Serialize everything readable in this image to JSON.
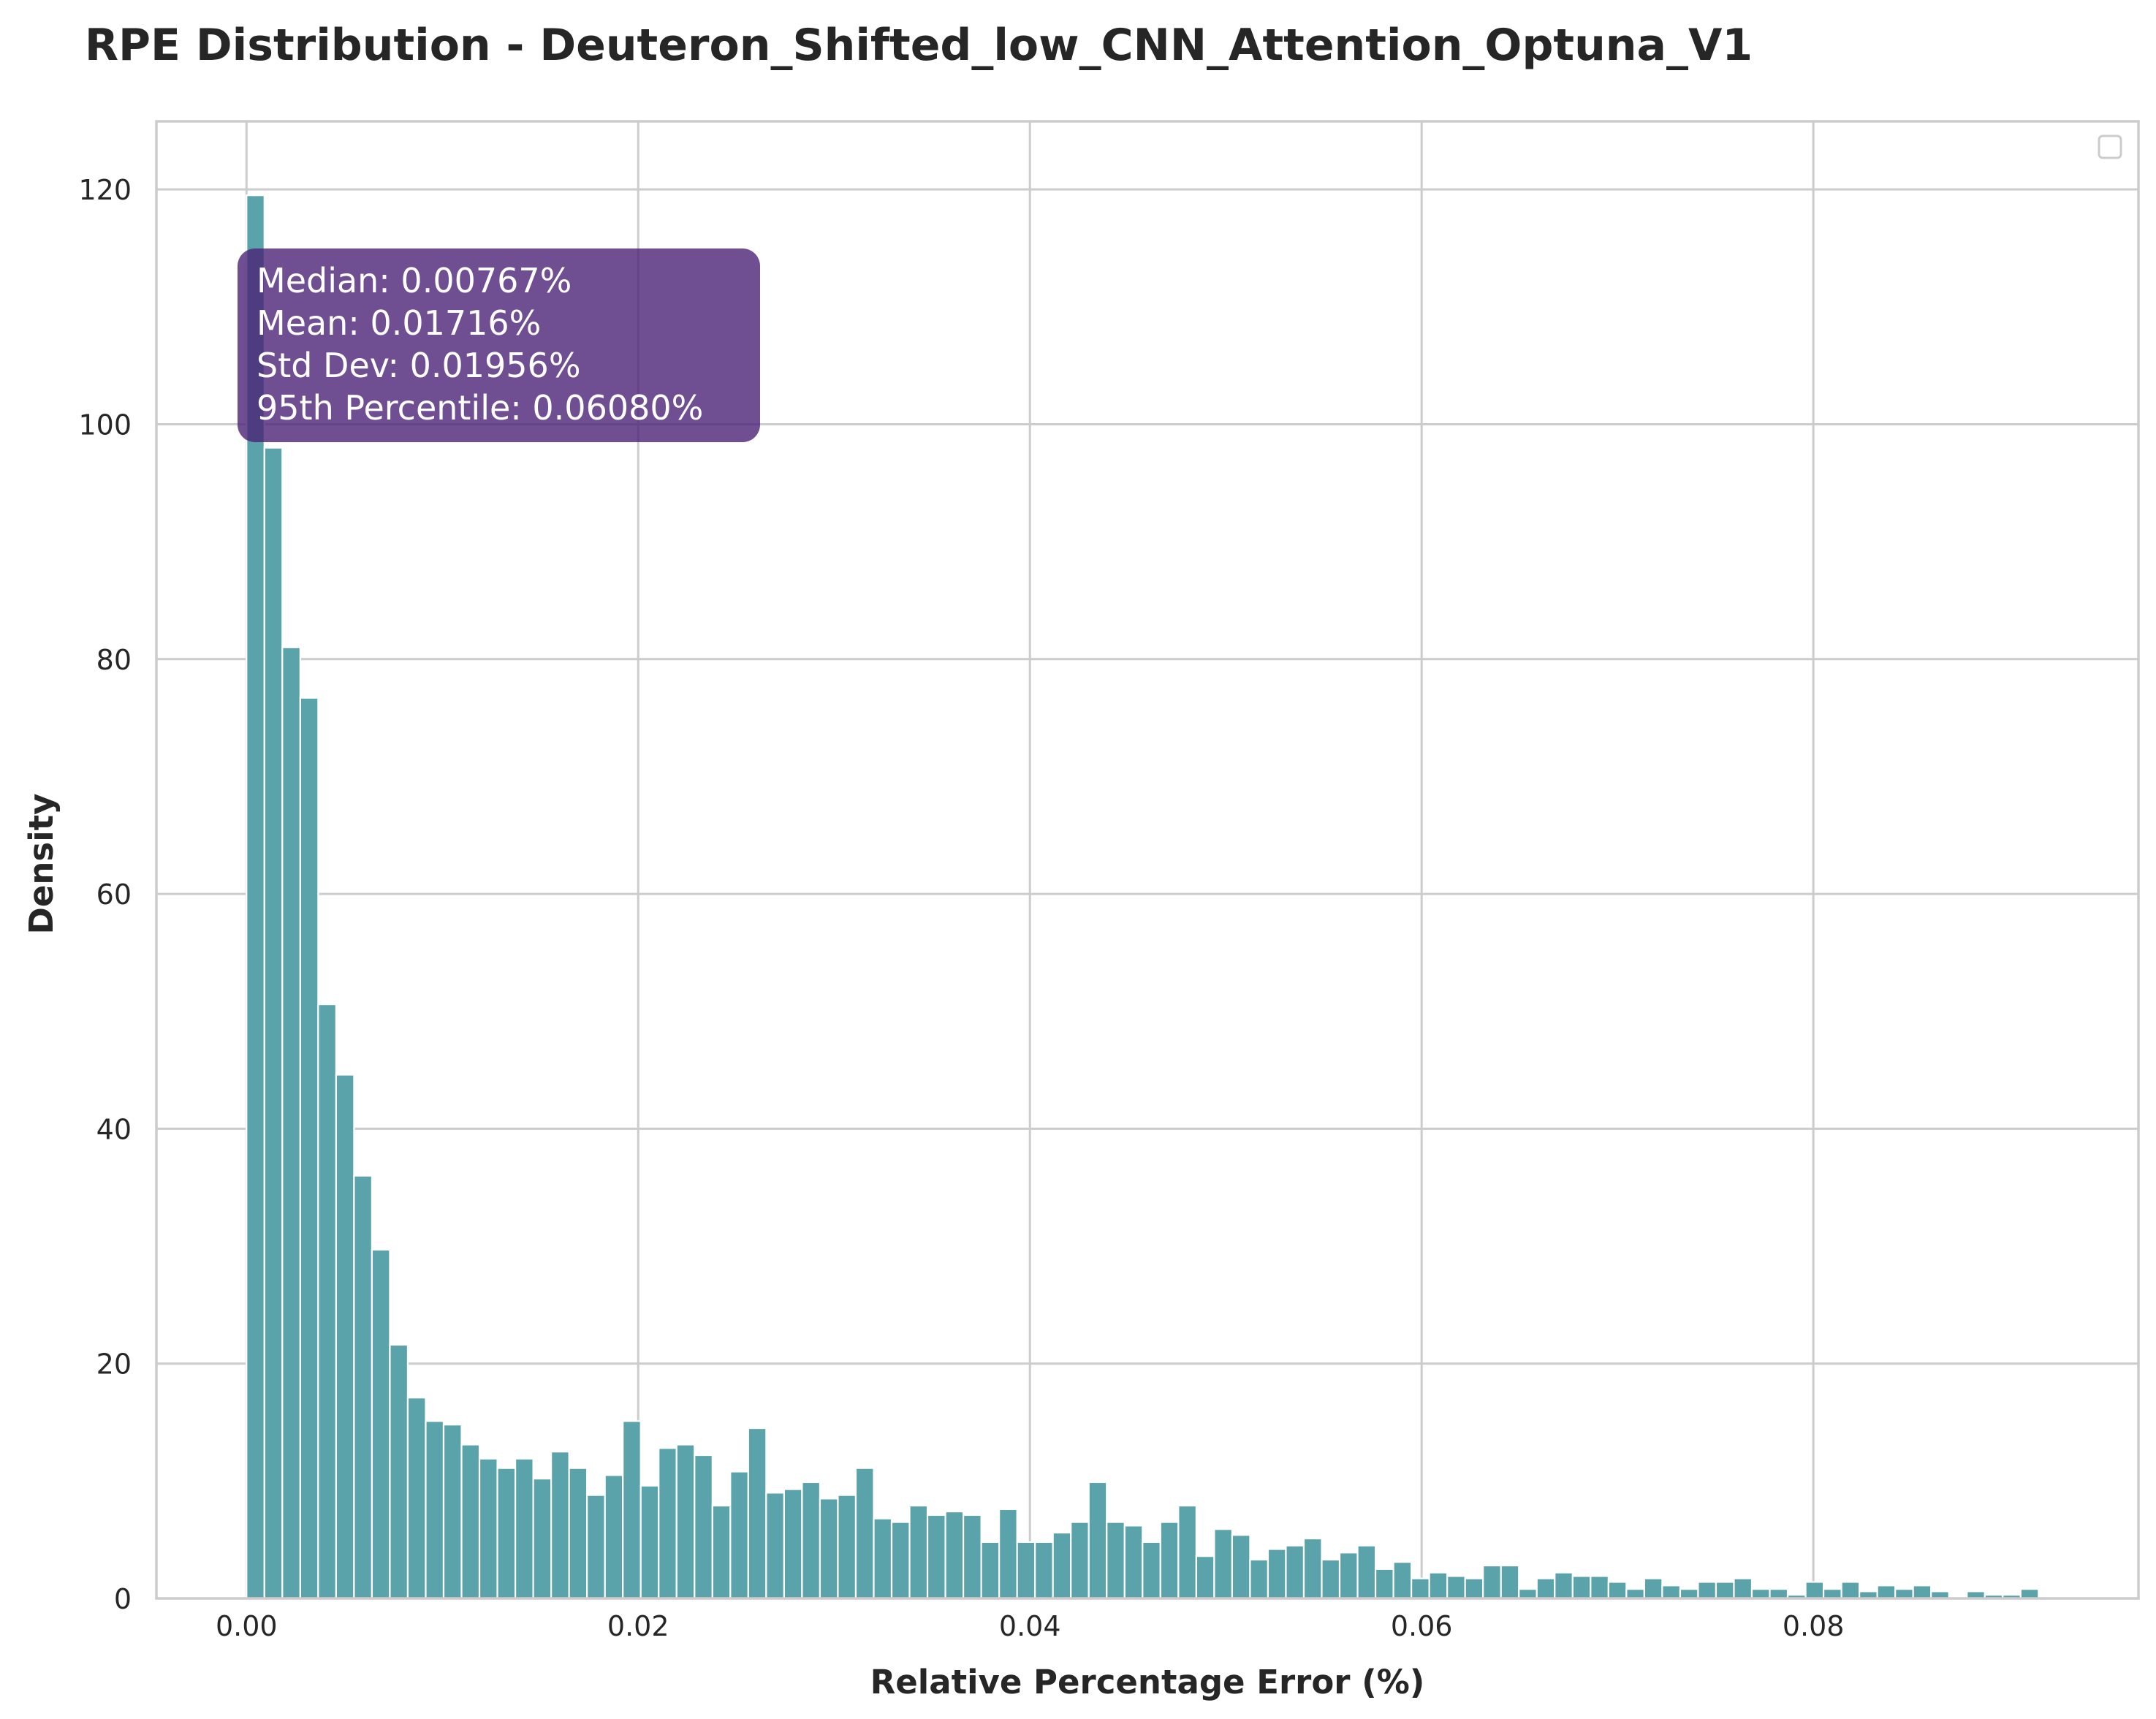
{
  "chart_data": {
    "type": "bar",
    "subtype": "histogram",
    "title": "RPE Distribution - Deuteron_Shifted_low_CNN_Attention_Optuna_V1",
    "xlabel": "Relative Percentage Error (%)",
    "ylabel": "Density",
    "xlim": [
      -0.0046,
      0.0966
    ],
    "ylim": [
      0,
      125.8
    ],
    "xticks": [
      0.0,
      0.02,
      0.04,
      0.06,
      0.08
    ],
    "xtick_labels": [
      "0.00",
      "0.02",
      "0.04",
      "0.06",
      "0.08"
    ],
    "yticks": [
      0,
      20,
      40,
      60,
      80,
      100,
      120
    ],
    "ytick_labels": [
      "0",
      "20",
      "40",
      "60",
      "80",
      "100",
      "120"
    ],
    "grid": true,
    "legend": {
      "placement": "top-right",
      "entries": []
    },
    "bar_color": "#5ba3aa",
    "bin_width": 0.000915,
    "bin_start": 0.0,
    "values": [
      119.5,
      98.0,
      81.0,
      76.7,
      50.6,
      44.6,
      36.0,
      29.7,
      21.6,
      17.1,
      15.1,
      14.8,
      13.1,
      11.9,
      11.1,
      11.9,
      10.2,
      12.5,
      11.1,
      8.8,
      10.5,
      15.1,
      9.6,
      12.8,
      13.1,
      12.2,
      7.9,
      10.8,
      14.5,
      9.0,
      9.3,
      9.9,
      8.5,
      8.8,
      11.1,
      6.8,
      6.5,
      7.9,
      7.1,
      7.4,
      7.1,
      4.8,
      7.6,
      4.8,
      4.8,
      5.6,
      6.5,
      9.9,
      6.5,
      6.2,
      4.8,
      6.5,
      7.9,
      3.6,
      5.9,
      5.4,
      3.3,
      4.2,
      4.5,
      5.1,
      3.3,
      3.9,
      4.5,
      2.5,
      3.1,
      1.7,
      2.2,
      1.9,
      1.7,
      2.8,
      2.8,
      0.8,
      1.7,
      2.2,
      1.9,
      1.9,
      1.4,
      0.8,
      1.7,
      1.1,
      0.8,
      1.4,
      1.4,
      1.7,
      0.8,
      0.8,
      0.3,
      1.4,
      0.8,
      1.4,
      0.6,
      1.1,
      0.8,
      1.1,
      0.6,
      0.0,
      0.6,
      0.3,
      0.3,
      0.8
    ],
    "stats_box": {
      "color": "#4b2275",
      "lines": [
        "Median: 0.00767%",
        "Mean: 0.01716%",
        "Std Dev: 0.01956%",
        "95th Percentile: 0.06080%"
      ]
    }
  }
}
